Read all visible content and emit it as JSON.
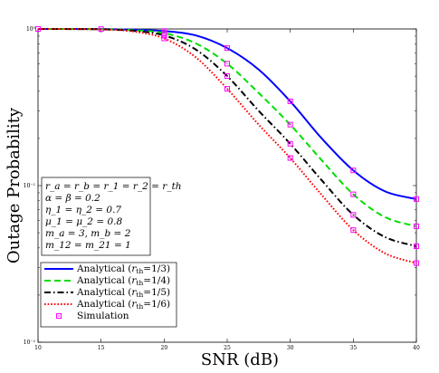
{
  "chart_data": {
    "type": "line",
    "xlabel": "SNR (dB)",
    "ylabel": "Outage Probability",
    "xlim": [
      10,
      40
    ],
    "ylim": [
      0.01,
      1
    ],
    "yscale": "log",
    "xticks": [
      10,
      15,
      20,
      25,
      30,
      35,
      40
    ],
    "xtick_labels": [
      "10",
      "15",
      "20",
      "25",
      "30",
      "35",
      "40"
    ],
    "yticks": [
      0.01,
      0.1,
      1
    ],
    "ytick_labels": [
      "10⁻²",
      "10⁻¹",
      "10⁰"
    ],
    "grid": false,
    "legend_position": "bottom-left",
    "annotation": {
      "lines": [
        "r_a = r_b = r_1 = r_2 = r_th",
        "α = β = 0.2",
        "η_1 = η_2 = 0.7",
        "μ_1 = μ_2 = 0.8",
        "m_a = 3, m_b = 2",
        "m_12 = m_21 = 1"
      ]
    },
    "series": [
      {
        "name": "Analytical (r_th=1/3)",
        "legend_label": "Analytical (",
        "legend_sub": "r",
        "legend_sub2": "th",
        "legend_tail": "=1/3)",
        "color": "#0000ff",
        "dash": "solid",
        "x": [
          10,
          12.5,
          15,
          17.5,
          20,
          22.5,
          25,
          27.5,
          30,
          32.5,
          35,
          37.5,
          40
        ],
        "y": [
          1.0,
          1.0,
          0.998,
          0.99,
          0.97,
          0.91,
          0.755,
          0.55,
          0.345,
          0.2,
          0.125,
          0.092,
          0.082
        ]
      },
      {
        "name": "Analytical (r_th=1/4)",
        "legend_label": "Analytical (",
        "legend_sub": "r",
        "legend_sub2": "th",
        "legend_tail": "=1/4)",
        "color": "#00dd00",
        "dash": "dashed",
        "x": [
          10,
          12.5,
          15,
          17.5,
          20,
          22.5,
          25,
          27.5,
          30,
          32.5,
          35,
          37.5,
          40
        ],
        "y": [
          1.0,
          1.0,
          0.997,
          0.982,
          0.94,
          0.81,
          0.6,
          0.39,
          0.245,
          0.145,
          0.088,
          0.063,
          0.055
        ]
      },
      {
        "name": "Analytical (r_th=1/5)",
        "legend_label": "Analytical (",
        "legend_sub": "r",
        "legend_sub2": "th",
        "legend_tail": "=1/5)",
        "color": "#000000",
        "dash": "dashdot",
        "x": [
          10,
          12.5,
          15,
          17.5,
          20,
          22.5,
          25,
          27.5,
          30,
          32.5,
          35,
          37.5,
          40
        ],
        "y": [
          1.0,
          0.999,
          0.995,
          0.975,
          0.91,
          0.74,
          0.5,
          0.3,
          0.185,
          0.108,
          0.065,
          0.047,
          0.041
        ]
      },
      {
        "name": "Analytical (r_th=1/6)",
        "legend_label": "Analytical (",
        "legend_sub": "r",
        "legend_sub2": "th",
        "legend_tail": "=1/6)",
        "color": "#ff0000",
        "dash": "dotted",
        "x": [
          10,
          12.5,
          15,
          17.5,
          20,
          22.5,
          25,
          27.5,
          30,
          32.5,
          35,
          37.5,
          40
        ],
        "y": [
          1.0,
          0.999,
          0.993,
          0.965,
          0.87,
          0.66,
          0.415,
          0.245,
          0.15,
          0.087,
          0.052,
          0.037,
          0.032
        ]
      }
    ],
    "simulation": {
      "name": "Simulation",
      "color": "#ff00ff",
      "marker": "square",
      "points": [
        {
          "x": 10,
          "y": 1.0
        },
        {
          "x": 15,
          "y": 0.998
        },
        {
          "x": 20,
          "y": 0.97
        },
        {
          "x": 25,
          "y": 0.755
        },
        {
          "x": 30,
          "y": 0.345
        },
        {
          "x": 35,
          "y": 0.125
        },
        {
          "x": 40,
          "y": 0.082
        },
        {
          "x": 20,
          "y": 0.94
        },
        {
          "x": 25,
          "y": 0.6
        },
        {
          "x": 30,
          "y": 0.245
        },
        {
          "x": 35,
          "y": 0.088
        },
        {
          "x": 40,
          "y": 0.055
        },
        {
          "x": 20,
          "y": 0.91
        },
        {
          "x": 25,
          "y": 0.5
        },
        {
          "x": 30,
          "y": 0.185
        },
        {
          "x": 35,
          "y": 0.065
        },
        {
          "x": 40,
          "y": 0.041
        },
        {
          "x": 20,
          "y": 0.87
        },
        {
          "x": 25,
          "y": 0.415
        },
        {
          "x": 30,
          "y": 0.15
        },
        {
          "x": 35,
          "y": 0.052
        },
        {
          "x": 40,
          "y": 0.032
        }
      ]
    }
  }
}
